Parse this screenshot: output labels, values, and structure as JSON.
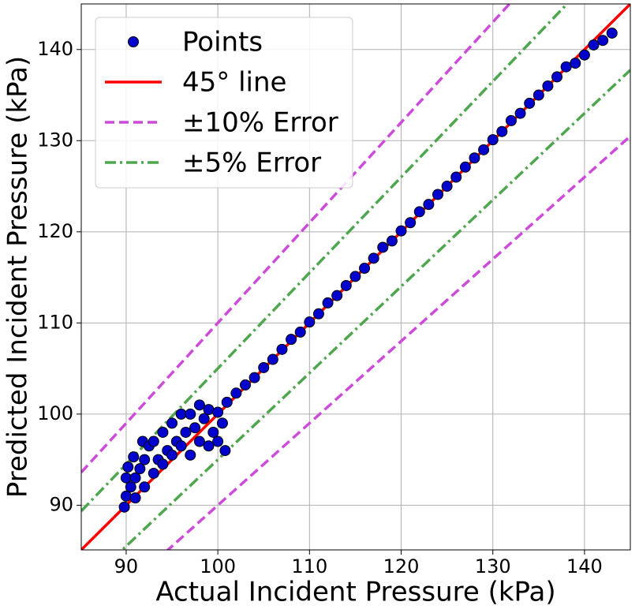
{
  "chart_data": {
    "type": "scatter",
    "xlabel": "Actual Incident Pressure (kPa)",
    "ylabel": "Predicted Incident Pressure (kPa)",
    "xlim": [
      85.1,
      145
    ],
    "ylim": [
      85.1,
      145
    ],
    "xticks": [
      90,
      100,
      110,
      120,
      130,
      140
    ],
    "yticks": [
      90,
      100,
      110,
      120,
      130,
      140
    ],
    "grid": true,
    "legend": "upper left",
    "series": [
      {
        "name": "Points",
        "kind": "scatter",
        "color": "#0000cd",
        "edgecolor": "#000000",
        "x": [
          89.8,
          90,
          90,
          90.2,
          90.5,
          90.8,
          91,
          91,
          91.5,
          91.8,
          92,
          92,
          92.5,
          93,
          93,
          93.5,
          94,
          94,
          94.5,
          95,
          95,
          95.5,
          96,
          96,
          96.5,
          97,
          97,
          97.5,
          98,
          98,
          98.5,
          99,
          99,
          99.5,
          100,
          100,
          100.5,
          100.8,
          101,
          102,
          103,
          104,
          105,
          106,
          107,
          108,
          109,
          110,
          111,
          112,
          113,
          114,
          115,
          116,
          117,
          118,
          119,
          120,
          121,
          122,
          123,
          124,
          125,
          126,
          127,
          128,
          129,
          130,
          131,
          132,
          133,
          134,
          135,
          136,
          137,
          138,
          139,
          140,
          141,
          142,
          143
        ],
        "values": [
          89.8,
          91,
          93,
          94.2,
          92,
          95.3,
          93,
          90.8,
          94,
          97,
          92,
          95,
          96.5,
          93.5,
          97,
          95,
          98,
          94.5,
          96,
          99,
          95.5,
          97,
          100,
          96.5,
          98,
          100,
          95.5,
          98.5,
          101,
          97,
          99.5,
          100.5,
          96.5,
          98,
          100.2,
          97,
          99,
          96,
          101.3,
          102.3,
          103.2,
          104,
          105.1,
          106,
          107.1,
          108.2,
          109,
          110.1,
          111,
          112.2,
          113,
          114.1,
          115.1,
          116,
          117.1,
          118.3,
          119,
          120.1,
          121,
          122.2,
          123,
          124.1,
          125,
          126,
          127.1,
          128.1,
          129,
          130.1,
          131,
          132.2,
          133,
          134.1,
          135,
          136,
          137,
          138.1,
          138.5,
          139.4,
          140.5,
          141,
          141.8
        ]
      },
      {
        "name": "45° line",
        "kind": "line",
        "linestyle": "solid",
        "color": "#ff0000",
        "x": [
          85.1,
          145
        ],
        "values": [
          85.1,
          145
        ]
      },
      {
        "name": "±10% Error",
        "kind": "line",
        "linestyle": "dashed",
        "color": "#cc4cd9",
        "x": [
          85.1,
          145,
          85.1,
          85.1,
          145
        ],
        "values": [
          93.61,
          159.5,
          null,
          76.59,
          130.5
        ]
      },
      {
        "name": "±5% Error",
        "kind": "line",
        "linestyle": "dashdot",
        "color": "#4ea64e",
        "x": [
          85.1,
          145,
          85.1,
          85.1,
          145
        ],
        "values": [
          89.36,
          152.25,
          null,
          80.85,
          137.75
        ]
      }
    ]
  }
}
